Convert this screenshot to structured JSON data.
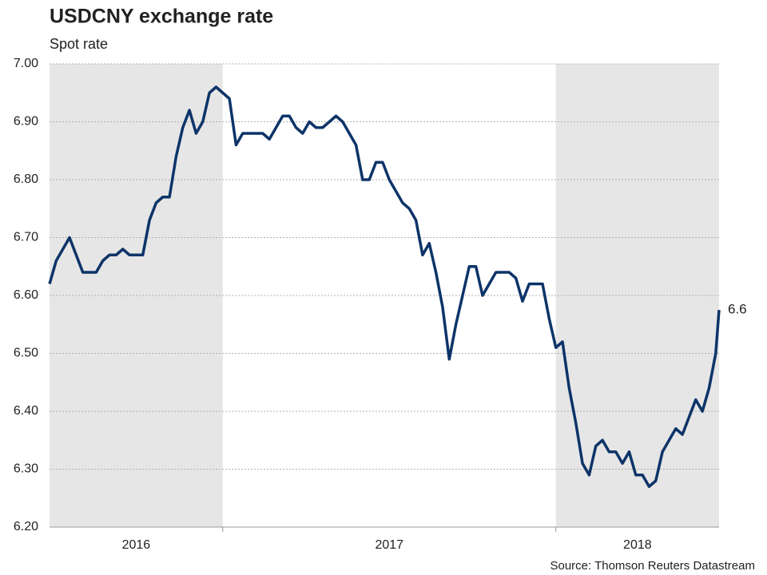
{
  "chart_data": {
    "type": "line",
    "title": "USDCNY exchange rate",
    "subtitle": "Spot rate",
    "source": "Source: Thomson Reuters Datastream",
    "x": [
      2016.48,
      2016.5,
      2016.52,
      2016.54,
      2016.56,
      2016.58,
      2016.6,
      2016.62,
      2016.64,
      2016.66,
      2016.68,
      2016.7,
      2016.72,
      2016.74,
      2016.76,
      2016.78,
      2016.8,
      2016.82,
      2016.84,
      2016.86,
      2016.88,
      2016.9,
      2016.92,
      2016.94,
      2016.96,
      2016.98,
      2017,
      2017.02,
      2017.04,
      2017.06,
      2017.08,
      2017.1,
      2017.12,
      2017.14,
      2017.16,
      2017.18,
      2017.2,
      2017.22,
      2017.24,
      2017.26,
      2017.28,
      2017.3,
      2017.32,
      2017.34,
      2017.36,
      2017.38,
      2017.4,
      2017.42,
      2017.44,
      2017.46,
      2017.48,
      2017.5,
      2017.52,
      2017.54,
      2017.56,
      2017.58,
      2017.6,
      2017.62,
      2017.64,
      2017.66,
      2017.68,
      2017.7,
      2017.72,
      2017.74,
      2017.76,
      2017.78,
      2017.8,
      2017.82,
      2017.84,
      2017.86,
      2017.88,
      2017.9,
      2017.92,
      2017.94,
      2017.96,
      2017.98,
      2018,
      2018.02,
      2018.04,
      2018.06,
      2018.08,
      2018.1,
      2018.12,
      2018.14,
      2018.16,
      2018.18,
      2018.2,
      2018.22,
      2018.24,
      2018.26,
      2018.28,
      2018.3,
      2018.32,
      2018.34,
      2018.36,
      2018.38,
      2018.4,
      2018.42,
      2018.44,
      2018.46,
      2018.48,
      2018.49
    ],
    "series": [
      {
        "name": "USDCNY",
        "color": "#0d3468",
        "values": [
          6.62,
          6.66,
          6.68,
          6.7,
          6.67,
          6.64,
          6.64,
          6.64,
          6.66,
          6.67,
          6.67,
          6.68,
          6.67,
          6.67,
          6.67,
          6.73,
          6.76,
          6.77,
          6.77,
          6.84,
          6.89,
          6.92,
          6.88,
          6.9,
          6.95,
          6.96,
          6.95,
          6.94,
          6.86,
          6.88,
          6.88,
          6.88,
          6.88,
          6.87,
          6.89,
          6.91,
          6.91,
          6.89,
          6.88,
          6.9,
          6.89,
          6.89,
          6.9,
          6.91,
          6.9,
          6.88,
          6.86,
          6.8,
          6.8,
          6.83,
          6.83,
          6.8,
          6.78,
          6.76,
          6.75,
          6.73,
          6.67,
          6.69,
          6.64,
          6.58,
          6.49,
          6.55,
          6.6,
          6.65,
          6.65,
          6.6,
          6.62,
          6.64,
          6.64,
          6.64,
          6.63,
          6.59,
          6.62,
          6.62,
          6.62,
          6.56,
          6.51,
          6.52,
          6.44,
          6.38,
          6.31,
          6.29,
          6.34,
          6.35,
          6.33,
          6.33,
          6.31,
          6.33,
          6.29,
          6.29,
          6.27,
          6.28,
          6.33,
          6.35,
          6.37,
          6.36,
          6.39,
          6.42,
          6.4,
          6.44,
          6.5,
          6.575
        ]
      }
    ],
    "last_label": "6.6",
    "xlim": [
      2016.48,
      2018.49
    ],
    "xticks": [
      2017,
      2018
    ],
    "periods": [
      {
        "label": "2016",
        "shaded": true
      },
      {
        "label": "2017",
        "shaded": false
      },
      {
        "label": "2018",
        "shaded": true
      }
    ],
    "shade_color": "#e6e6e6",
    "ylim": [
      6.2,
      7.0
    ],
    "yticks": [
      {
        "value": 6.2,
        "label": "6.20"
      },
      {
        "value": 6.3,
        "label": "6.30"
      },
      {
        "value": 6.4,
        "label": "6.40"
      },
      {
        "value": 6.5,
        "label": "6.50"
      },
      {
        "value": 6.6,
        "label": "6.60"
      },
      {
        "value": 6.7,
        "label": "6.70"
      },
      {
        "value": 6.8,
        "label": "6.80"
      },
      {
        "value": 6.9,
        "label": "6.90"
      },
      {
        "value": 7.0,
        "label": "7.00"
      }
    ],
    "grid": true
  }
}
